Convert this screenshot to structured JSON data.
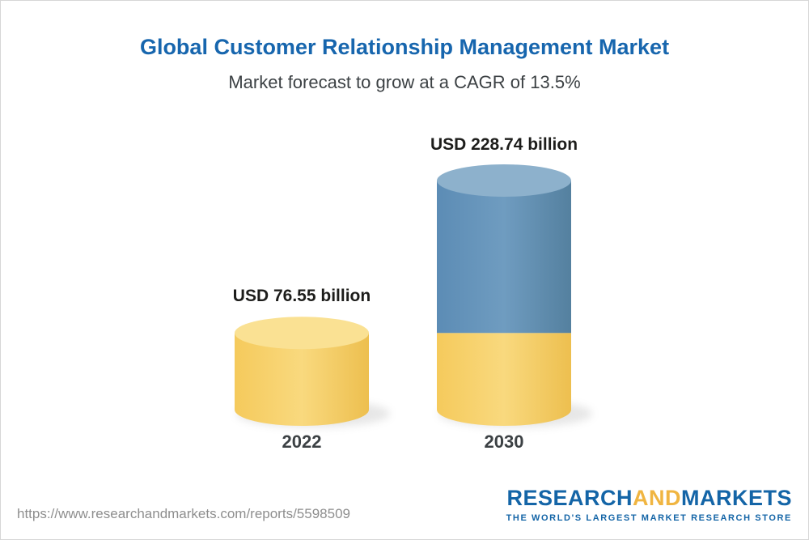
{
  "chart_data": {
    "type": "bar",
    "title": "Global Customer Relationship Management Market",
    "subtitle": "Market forecast to grow at a CAGR of 13.5%",
    "categories": [
      "2022",
      "2030"
    ],
    "values": [
      76.55,
      228.74
    ],
    "value_labels": [
      "USD 76.55 billion",
      "USD 228.74 billion"
    ],
    "unit": "USD billion",
    "cagr": "13.5%",
    "legend": null,
    "grid": false,
    "colors": {
      "bar_2022_body": "#f6cd5f",
      "bar_2022_top": "#fae193",
      "bar_2030_body": "#5d8eb8",
      "bar_2030_top": "#8db1cc",
      "bar_2030_base_segment": "#f6cd5f",
      "title": "#1766ae"
    }
  },
  "footer": {
    "url": "https://www.researchandmarkets.com/reports/5598509",
    "logo": {
      "part1": "RESEARCH",
      "part2": "AND",
      "part3": "MARKETS",
      "tagline": "THE WORLD'S LARGEST MARKET RESEARCH STORE"
    }
  }
}
